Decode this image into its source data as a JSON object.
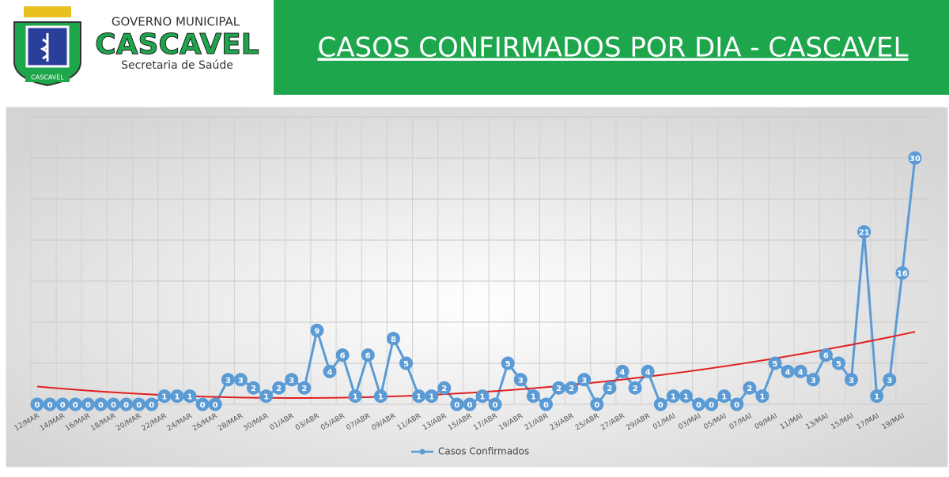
{
  "header": {
    "org_line1": "GOVERNO MUNICIPAL",
    "org_name": "CASCAVEL",
    "org_dept": "Secretaria de Saúde",
    "logo_text": "CASCAVEL"
  },
  "chart_data": {
    "type": "line",
    "title": "CASOS CONFIRMADOS POR DIA - CASCAVEL",
    "categories": [
      "12/MAR",
      null,
      "14/MAR",
      null,
      "16/MAR",
      null,
      "18/MAR",
      null,
      "20/MAR",
      null,
      "22/MAR",
      null,
      "24/MAR",
      null,
      "26/MAR",
      null,
      "28/MAR",
      null,
      "30/MAR",
      null,
      "01/ABR",
      null,
      "03/ABR",
      null,
      "05/ABR",
      null,
      "07/ABR",
      null,
      "09/ABR",
      null,
      "11/ABR",
      null,
      "13/ABR",
      null,
      "15/ABR",
      null,
      "17/ABR",
      null,
      "19/ABR",
      null,
      "21/ABR",
      null,
      "23/ABR",
      null,
      "25/ABR",
      null,
      "27/ABR",
      null,
      "29/ABR",
      null,
      "01/MAI",
      null,
      "03/MAI",
      null,
      "05/MAI",
      null,
      "07/MAI",
      null,
      "09/MAI",
      null,
      "11/MAI",
      null,
      "13/MAI",
      null,
      "15/MAI",
      null,
      "17/MAI",
      null,
      "19/MAI",
      null
    ],
    "series": [
      {
        "name": "Casos Confirmados",
        "color": "#5b9bd5",
        "values": [
          0,
          0,
          0,
          0,
          0,
          0,
          0,
          0,
          0,
          0,
          1,
          1,
          1,
          0,
          0,
          3,
          3,
          2,
          1,
          2,
          3,
          2,
          9,
          4,
          6,
          1,
          6,
          1,
          8,
          5,
          1,
          1,
          2,
          0,
          0,
          1,
          0,
          5,
          3,
          1,
          0,
          2,
          2,
          3,
          0,
          2,
          4,
          2,
          4,
          0,
          1,
          1,
          0,
          0,
          1,
          0,
          2,
          1,
          5,
          4,
          4,
          3,
          6,
          5,
          3,
          21,
          1,
          3,
          16,
          30
        ]
      }
    ],
    "ylim": [
      0,
      35
    ],
    "yticks": [
      0,
      5,
      10,
      15,
      20,
      25,
      30,
      35
    ],
    "grid": true,
    "trendline": "polynomial",
    "trendline_color": "#e02020",
    "legend": "bottom"
  }
}
